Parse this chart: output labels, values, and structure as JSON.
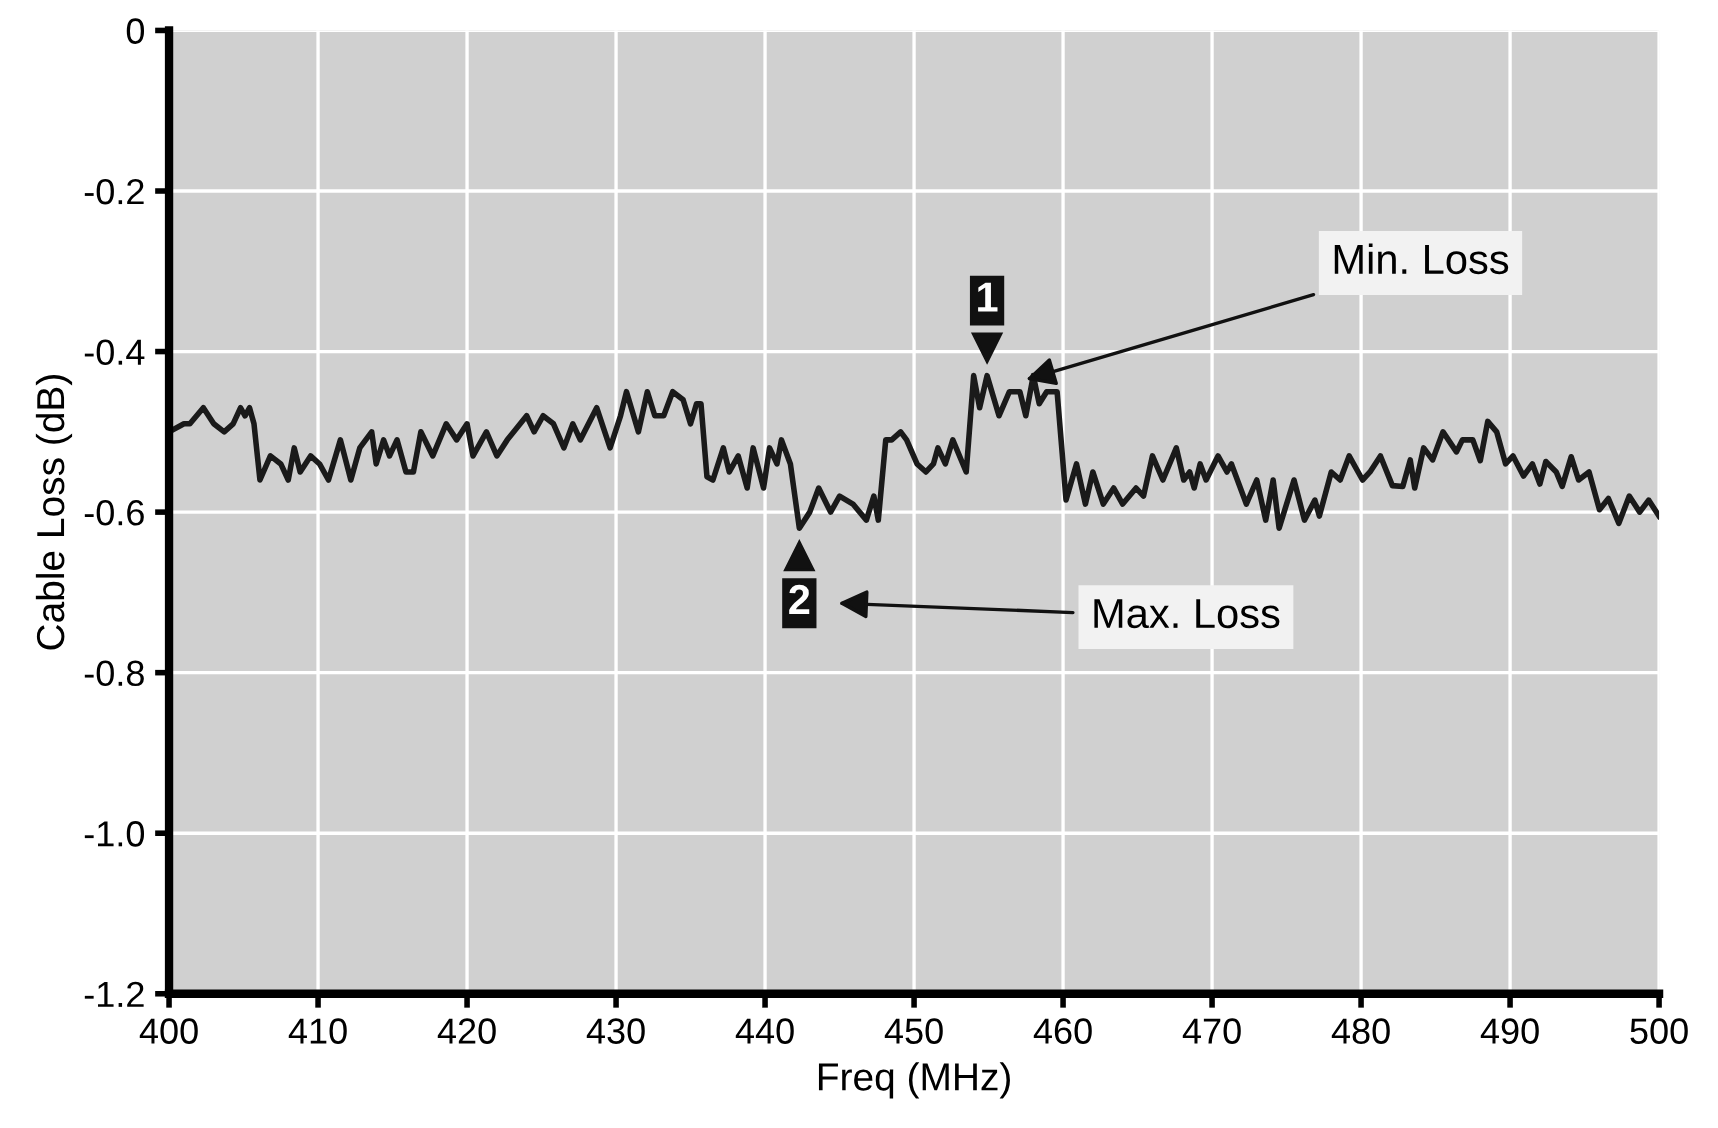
{
  "chart_data": {
    "type": "line",
    "xlabel": "Freq (MHz)",
    "ylabel": "Cable Loss (dB)",
    "x": [
      400.0,
      401.0,
      401.4,
      402.3,
      403.0,
      403.7,
      404.3,
      404.8,
      405.1,
      405.4,
      405.7,
      406.1,
      406.8,
      407.5,
      408.0,
      408.4,
      408.8,
      409.5,
      410.1,
      410.7,
      411.5,
      412.2,
      412.8,
      413.6,
      413.9,
      414.4,
      414.8,
      415.3,
      415.9,
      416.4,
      416.9,
      417.7,
      418.6,
      419.3,
      420.0,
      420.4,
      421.3,
      422.0,
      422.7,
      424.0,
      424.5,
      425.1,
      425.8,
      426.5,
      427.1,
      427.6,
      428.7,
      429.6,
      430.3,
      430.7,
      431.5,
      432.1,
      432.6,
      433.2,
      433.8,
      434.5,
      435.0,
      435.4,
      435.7,
      436.1,
      436.5,
      437.2,
      437.6,
      438.2,
      438.8,
      439.2,
      439.9,
      440.3,
      440.8,
      441.1,
      441.7,
      442.3,
      443.0,
      443.6,
      444.4,
      445.0,
      445.9,
      446.8,
      447.3,
      447.6,
      448.1,
      448.5,
      449.1,
      449.5,
      450.2,
      450.8,
      451.3,
      451.6,
      452.1,
      452.6,
      453.5,
      454.0,
      454.4,
      454.9,
      455.7,
      456.4,
      457.1,
      457.5,
      458.0,
      458.4,
      458.9,
      459.6,
      460.2,
      460.9,
      461.5,
      462.0,
      462.7,
      463.4,
      464.0,
      464.9,
      465.4,
      466.0,
      466.7,
      467.6,
      468.1,
      468.5,
      468.8,
      469.2,
      469.6,
      470.4,
      471.0,
      471.3,
      472.3,
      473.0,
      473.6,
      474.1,
      474.5,
      475.5,
      476.2,
      476.9,
      477.2,
      478.0,
      478.6,
      479.2,
      480.1,
      480.6,
      481.3,
      482.1,
      482.8,
      483.3,
      483.6,
      484.2,
      484.8,
      485.5,
      486.4,
      486.8,
      487.5,
      488.0,
      488.5,
      489.1,
      489.7,
      490.2,
      490.9,
      491.5,
      492.0,
      492.4,
      493.1,
      493.5,
      494.1,
      494.6,
      495.3,
      496.0,
      496.6,
      497.3,
      498.0,
      498.7,
      499.3,
      500.0
    ],
    "series": [
      {
        "color": "#1a1a1a",
        "values": [
          -0.5,
          -0.49,
          -0.49,
          -0.47,
          -0.49,
          -0.5,
          -0.49,
          -0.47,
          -0.48,
          -0.47,
          -0.49,
          -0.56,
          -0.53,
          -0.54,
          -0.56,
          -0.52,
          -0.55,
          -0.53,
          -0.54,
          -0.56,
          -0.51,
          -0.56,
          -0.52,
          -0.5,
          -0.54,
          -0.51,
          -0.53,
          -0.51,
          -0.55,
          -0.55,
          -0.5,
          -0.53,
          -0.49,
          -0.51,
          -0.49,
          -0.53,
          -0.5,
          -0.53,
          -0.51,
          -0.48,
          -0.5,
          -0.48,
          -0.49,
          -0.52,
          -0.49,
          -0.51,
          -0.47,
          -0.52,
          -0.48,
          -0.45,
          -0.5,
          -0.45,
          -0.48,
          -0.48,
          -0.45,
          -0.46,
          -0.49,
          -0.465,
          -0.465,
          -0.556,
          -0.56,
          -0.52,
          -0.55,
          -0.53,
          -0.57,
          -0.52,
          -0.57,
          -0.52,
          -0.54,
          -0.51,
          -0.54,
          -0.62,
          -0.6,
          -0.57,
          -0.6,
          -0.58,
          -0.59,
          -0.61,
          -0.58,
          -0.61,
          -0.51,
          -0.51,
          -0.5,
          -0.51,
          -0.54,
          -0.55,
          -0.54,
          -0.52,
          -0.54,
          -0.51,
          -0.55,
          -0.43,
          -0.47,
          -0.43,
          -0.48,
          -0.45,
          -0.45,
          -0.48,
          -0.43,
          -0.465,
          -0.45,
          -0.45,
          -0.585,
          -0.54,
          -0.59,
          -0.55,
          -0.59,
          -0.57,
          -0.59,
          -0.57,
          -0.58,
          -0.53,
          -0.56,
          -0.52,
          -0.56,
          -0.55,
          -0.57,
          -0.54,
          -0.56,
          -0.53,
          -0.55,
          -0.54,
          -0.59,
          -0.56,
          -0.61,
          -0.56,
          -0.62,
          -0.56,
          -0.61,
          -0.585,
          -0.605,
          -0.55,
          -0.56,
          -0.53,
          -0.56,
          -0.55,
          -0.53,
          -0.567,
          -0.568,
          -0.535,
          -0.57,
          -0.52,
          -0.535,
          -0.5,
          -0.525,
          -0.51,
          -0.51,
          -0.536,
          -0.487,
          -0.5,
          -0.54,
          -0.53,
          -0.555,
          -0.54,
          -0.565,
          -0.537,
          -0.55,
          -0.568,
          -0.531,
          -0.56,
          -0.55,
          -0.597,
          -0.583,
          -0.614,
          -0.58,
          -0.6,
          -0.585,
          -0.605
        ]
      }
    ],
    "xlim": [
      400,
      500
    ],
    "xticks": [
      400,
      410,
      420,
      430,
      440,
      450,
      460,
      470,
      480,
      490,
      500
    ],
    "ylim": [
      -1.2,
      0
    ],
    "yticks": [
      0,
      {
        "value": -0.2,
        "label": "-0.2"
      },
      {
        "value": -0.4,
        "label": "-0.4"
      },
      {
        "value": -0.6,
        "label": "-0.6"
      },
      {
        "value": -0.8,
        "label": "-0.8"
      },
      {
        "value": -1.0,
        "label": "-1.0"
      },
      {
        "value": -1.2,
        "label": "-1.2"
      }
    ],
    "grid": true,
    "annotations": [
      {
        "text": "1",
        "x": 454.9,
        "y": -0.43
      },
      {
        "text": "Min. Loss",
        "x": 457.5,
        "y": -0.435
      },
      {
        "text": "2",
        "x": 442.3,
        "y": -0.62
      },
      "Max. Loss"
    ]
  }
}
